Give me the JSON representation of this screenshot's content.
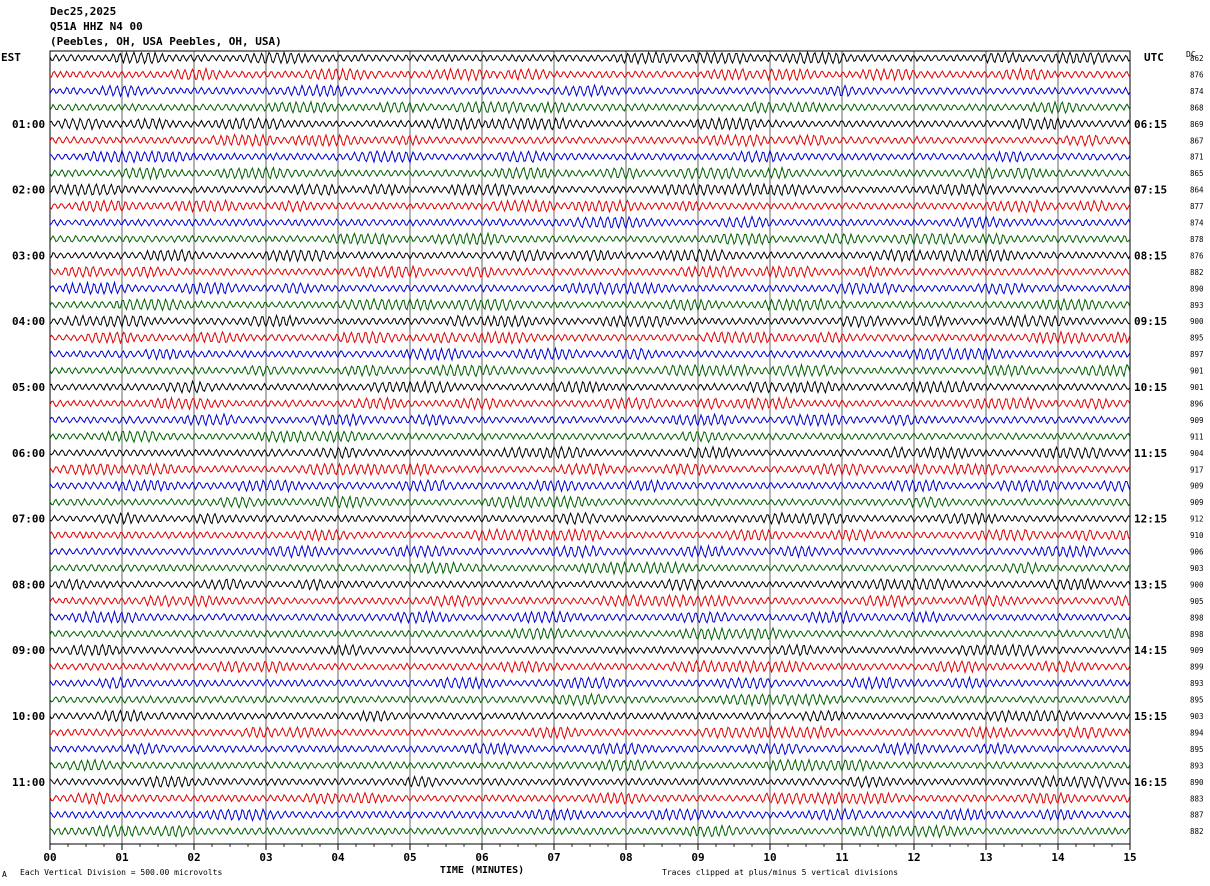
{
  "header": {
    "date": "Dec25,2025",
    "station": "Q51A HHZ N4 00",
    "location": "(Peebles, OH, USA Peebles, OH, USA)"
  },
  "left_zone": "EST",
  "right_zone": "UTC",
  "dc_label": "DC",
  "footer": {
    "scale": "Each Vertical Division =  500.00 microvolts",
    "clip": "Traces clipped at plus/minus 5 vertical divisions",
    "corner_mark": "A"
  },
  "chart_data": {
    "type": "line",
    "title": "",
    "xlabel": "TIME (MINUTES)",
    "ylabel": "",
    "xlim": [
      0,
      15
    ],
    "x_ticks": [
      "00",
      "01",
      "02",
      "03",
      "04",
      "05",
      "06",
      "07",
      "08",
      "09",
      "10",
      "11",
      "12",
      "13",
      "14",
      "15"
    ],
    "trace_colors": [
      "#000000",
      "#e00000",
      "#0000d0",
      "#006000"
    ],
    "rows_per_hour": 4,
    "left_hour_labels": [
      "01:00",
      "02:00",
      "03:00",
      "04:00",
      "05:00",
      "06:00",
      "07:00",
      "08:00",
      "09:00",
      "10:00",
      "11:00"
    ],
    "right_hour_labels": [
      "06:15",
      "07:15",
      "08:15",
      "09:15",
      "10:15",
      "11:15",
      "12:15",
      "13:15",
      "14:15",
      "15:15",
      "16:15"
    ],
    "dc_offsets": [
      "862",
      "876",
      "874",
      "868",
      "869",
      "867",
      "871",
      "865",
      "864",
      "877",
      "874",
      "878",
      "876",
      "882",
      "890",
      "893",
      "900",
      "895",
      "897",
      "901",
      "901",
      "896",
      "909",
      "911",
      "904",
      "917",
      "909",
      "909",
      "912",
      "910",
      "906",
      "903",
      "900",
      "905",
      "898",
      "898",
      "909",
      "899",
      "893",
      "895",
      "903",
      "894",
      "895",
      "893",
      "890",
      "883",
      "887",
      "882"
    ]
  }
}
